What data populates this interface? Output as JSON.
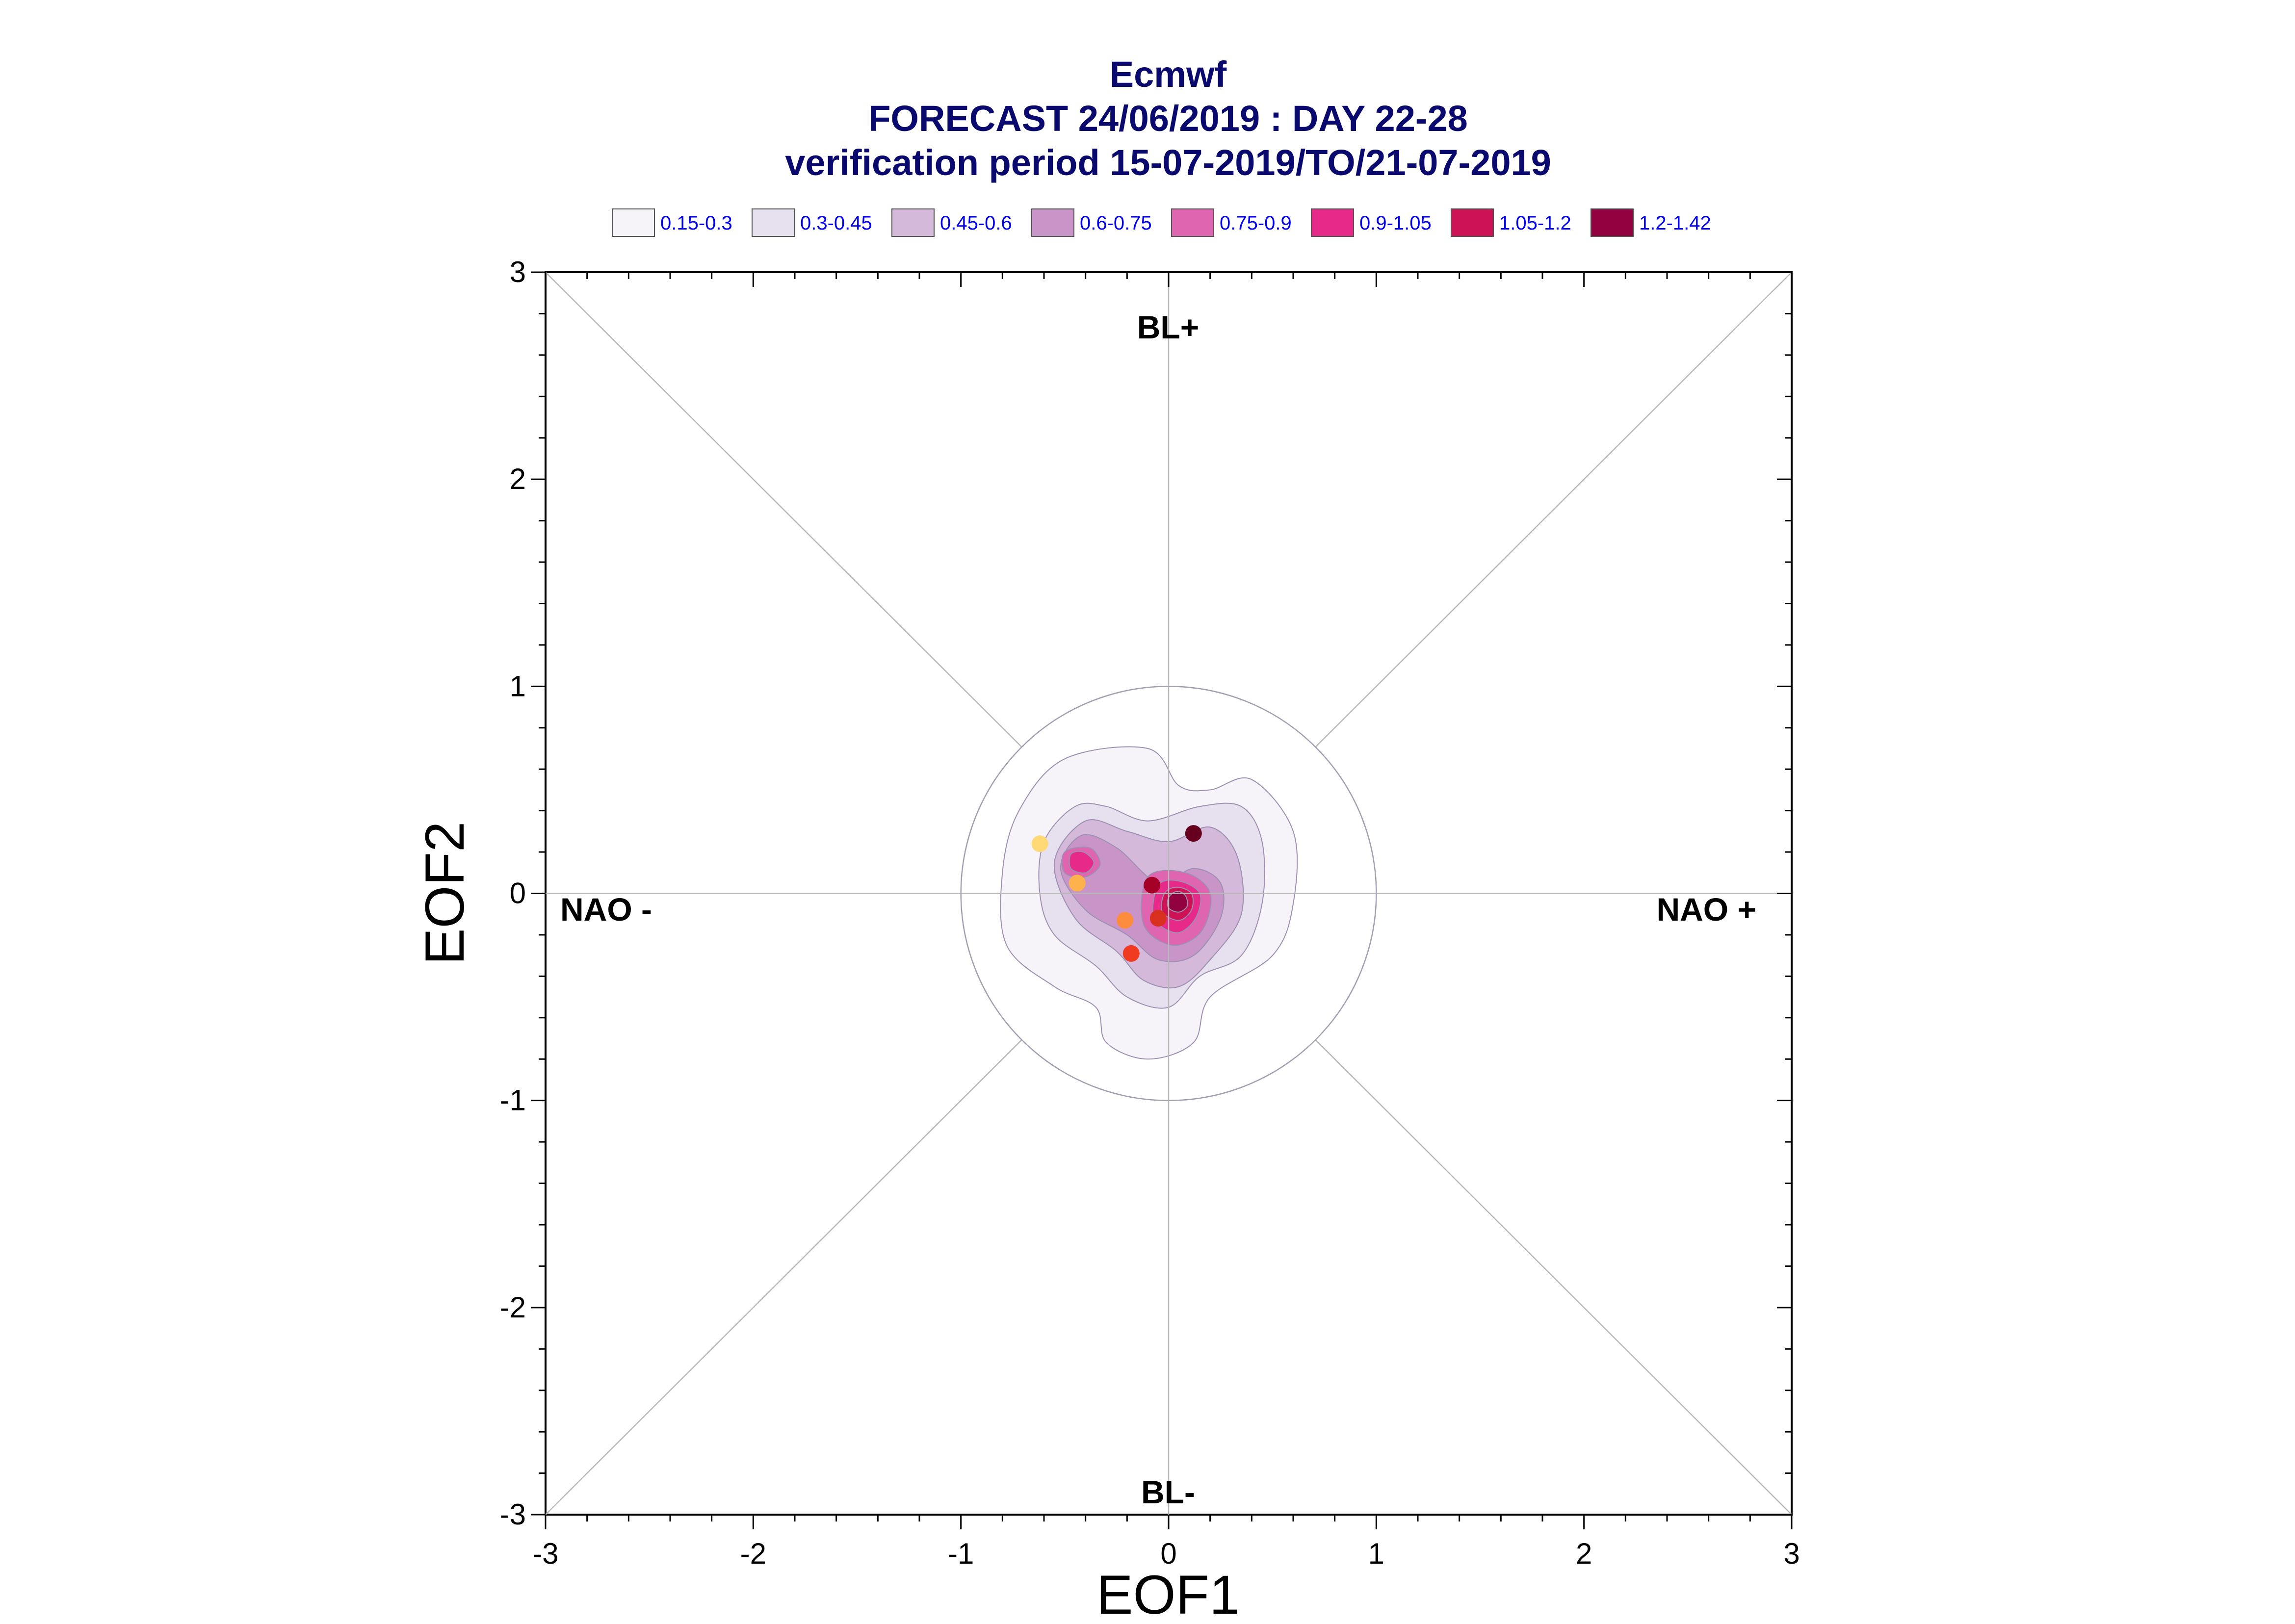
{
  "chart_data": {
    "type": "contour-scatter",
    "title_lines": [
      "Ecmwf",
      "FORECAST 24/06/2019 : DAY 22-28",
      "verification period 15-07-2019/TO/21-07-2019"
    ],
    "xlabel": "EOF1",
    "ylabel": "EOF2",
    "xlim": [
      -3,
      3
    ],
    "ylim": [
      -3,
      3
    ],
    "x_ticks": [
      -3,
      -2,
      -1,
      0,
      1,
      2,
      3
    ],
    "y_ticks": [
      -3,
      -2,
      -1,
      0,
      1,
      2,
      3
    ],
    "region_labels": {
      "top": "BL+",
      "bottom": "BL-",
      "left": "NAO -",
      "right": "NAO +"
    },
    "reference_circle_radius": 1,
    "legend": [
      {
        "label": "0.15-0.3",
        "color": "#f7f4f9"
      },
      {
        "label": "0.3-0.45",
        "color": "#e7e1ef"
      },
      {
        "label": "0.45-0.6",
        "color": "#d4b9da"
      },
      {
        "label": "0.6-0.75",
        "color": "#c994c7"
      },
      {
        "label": "0.75-0.9",
        "color": "#df65b0"
      },
      {
        "label": "0.9-1.05",
        "color": "#e7298a"
      },
      {
        "label": "1.05-1.2",
        "color": "#ce1256"
      },
      {
        "label": "1.2-1.42",
        "color": "#91003f"
      }
    ],
    "density_contours": [
      {
        "level": "0.15-0.3",
        "color": "#f7f4f9",
        "points": [
          [
            -0.1,
            0.7
          ],
          [
            -0.5,
            0.65
          ],
          [
            -0.72,
            0.4
          ],
          [
            -0.8,
            0.1
          ],
          [
            -0.78,
            -0.25
          ],
          [
            -0.55,
            -0.45
          ],
          [
            -0.35,
            -0.55
          ],
          [
            -0.3,
            -0.72
          ],
          [
            -0.1,
            -0.8
          ],
          [
            0.12,
            -0.72
          ],
          [
            0.2,
            -0.5
          ],
          [
            0.5,
            -0.3
          ],
          [
            0.6,
            -0.05
          ],
          [
            0.6,
            0.3
          ],
          [
            0.4,
            0.55
          ],
          [
            0.2,
            0.5
          ],
          [
            0.05,
            0.52
          ]
        ]
      },
      {
        "level": "0.3-0.45",
        "color": "#e7e1ef",
        "points": [
          [
            -0.45,
            0.42
          ],
          [
            -0.6,
            0.25
          ],
          [
            -0.62,
            0.0
          ],
          [
            -0.55,
            -0.2
          ],
          [
            -0.35,
            -0.35
          ],
          [
            -0.2,
            -0.5
          ],
          [
            0.0,
            -0.55
          ],
          [
            0.15,
            -0.4
          ],
          [
            0.35,
            -0.3
          ],
          [
            0.45,
            -0.05
          ],
          [
            0.45,
            0.25
          ],
          [
            0.35,
            0.42
          ],
          [
            0.15,
            0.42
          ],
          [
            -0.1,
            0.35
          ],
          [
            -0.3,
            0.42
          ]
        ]
      },
      {
        "level": "0.45-0.6",
        "color": "#d4b9da",
        "points": [
          [
            -0.4,
            0.35
          ],
          [
            -0.55,
            0.15
          ],
          [
            -0.45,
            -0.12
          ],
          [
            -0.25,
            -0.28
          ],
          [
            -0.12,
            -0.42
          ],
          [
            0.05,
            -0.45
          ],
          [
            0.2,
            -0.32
          ],
          [
            0.35,
            -0.1
          ],
          [
            0.33,
            0.18
          ],
          [
            0.2,
            0.32
          ],
          [
            0.0,
            0.25
          ],
          [
            -0.2,
            0.3
          ]
        ]
      },
      {
        "level": "0.6-0.75",
        "color": "#c994c7",
        "points": [
          [
            -0.42,
            0.28
          ],
          [
            -0.52,
            0.12
          ],
          [
            -0.4,
            -0.08
          ],
          [
            -0.2,
            -0.2
          ],
          [
            -0.05,
            -0.32
          ],
          [
            0.12,
            -0.3
          ],
          [
            0.25,
            -0.12
          ],
          [
            0.25,
            0.05
          ],
          [
            0.12,
            0.12
          ],
          [
            -0.05,
            0.05
          ],
          [
            -0.25,
            0.22
          ]
        ]
      },
      {
        "level": "0.75-0.9",
        "color": "#df65b0",
        "points": [
          [
            -0.1,
            0.08
          ],
          [
            -0.12,
            -0.15
          ],
          [
            0.02,
            -0.25
          ],
          [
            0.16,
            -0.18
          ],
          [
            0.2,
            0.0
          ],
          [
            0.08,
            0.1
          ]
        ]
      },
      {
        "level": "0.75-0.9",
        "color": "#df65b0",
        "points": [
          [
            -0.5,
            0.2
          ],
          [
            -0.5,
            0.1
          ],
          [
            -0.4,
            0.08
          ],
          [
            -0.33,
            0.14
          ],
          [
            -0.38,
            0.22
          ]
        ]
      },
      {
        "level": "0.9-1.05",
        "color": "#e7298a",
        "points": [
          [
            -0.05,
            0.04
          ],
          [
            -0.07,
            -0.12
          ],
          [
            0.04,
            -0.19
          ],
          [
            0.13,
            -0.12
          ],
          [
            0.15,
            0.0
          ],
          [
            0.05,
            0.06
          ]
        ]
      },
      {
        "level": "0.9-1.05",
        "color": "#e7298a",
        "points": [
          [
            -0.47,
            0.19
          ],
          [
            -0.47,
            0.12
          ],
          [
            -0.4,
            0.1
          ],
          [
            -0.36,
            0.15
          ],
          [
            -0.41,
            0.2
          ]
        ]
      },
      {
        "level": "1.05-1.2",
        "color": "#ce1256",
        "points": [
          [
            -0.02,
            0.0
          ],
          [
            -0.03,
            -0.09
          ],
          [
            0.05,
            -0.13
          ],
          [
            0.11,
            -0.08
          ],
          [
            0.11,
            0.0
          ],
          [
            0.04,
            0.03
          ]
        ]
      },
      {
        "level": "1.2-1.42",
        "color": "#91003f",
        "points": [
          [
            0.0,
            -0.02
          ],
          [
            0.0,
            -0.07
          ],
          [
            0.05,
            -0.09
          ],
          [
            0.09,
            -0.06
          ],
          [
            0.08,
            -0.01
          ],
          [
            0.04,
            0.01
          ]
        ]
      }
    ],
    "scatter_points": [
      {
        "x": 0.12,
        "y": 0.29,
        "color": "#67001f"
      },
      {
        "x": -0.08,
        "y": 0.04,
        "color": "#a50026"
      },
      {
        "x": -0.05,
        "y": -0.12,
        "color": "#d7301f"
      },
      {
        "x": -0.18,
        "y": -0.29,
        "color": "#f03b20"
      },
      {
        "x": -0.21,
        "y": -0.13,
        "color": "#fd8d3c"
      },
      {
        "x": -0.44,
        "y": 0.05,
        "color": "#feb24c"
      },
      {
        "x": -0.62,
        "y": 0.24,
        "color": "#fed976"
      }
    ]
  }
}
